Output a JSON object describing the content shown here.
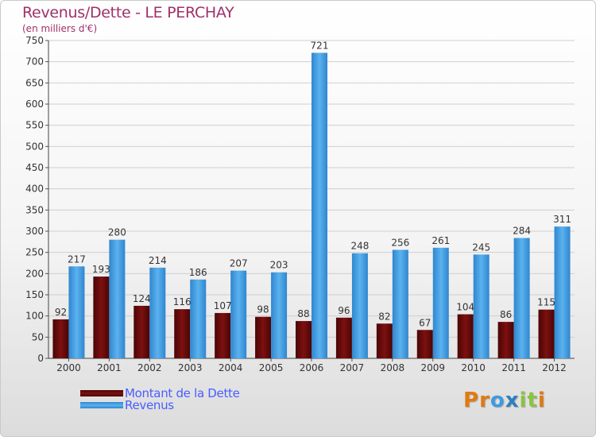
{
  "title": "Revenus/Dette - LE PERCHAY",
  "subtitle": "(en milliers d'€)",
  "colors": {
    "title": "#a0306a",
    "dette": "#6e0a0a",
    "revenus": "#3d9be0",
    "legend_text": "#4a5cff"
  },
  "legend": [
    {
      "label": "Montant de la Dette",
      "color": "#6e0a0a"
    },
    {
      "label": "Revenus",
      "color": "#3d9be0"
    }
  ],
  "logo": {
    "text": "Proxiti",
    "letters": [
      "P",
      "r",
      "o",
      "x",
      "i",
      "t",
      "i"
    ],
    "colors": [
      "#e07a10",
      "#e07a10",
      "#3d9be0",
      "#2e7fbf",
      "#8ac43f",
      "#8ac43f",
      "#e07a10"
    ]
  },
  "chart_data": {
    "type": "bar",
    "title": "Revenus/Dette - LE PERCHAY",
    "ylabel": "(en milliers d'€)",
    "xlabel": "",
    "categories": [
      "2000",
      "2001",
      "2002",
      "2003",
      "2004",
      "2005",
      "2006",
      "2007",
      "2008",
      "2009",
      "2010",
      "2011",
      "2012"
    ],
    "series": [
      {
        "name": "Montant de la Dette",
        "values": [
          92,
          193,
          124,
          116,
          107,
          98,
          88,
          96,
          82,
          67,
          104,
          86,
          115
        ]
      },
      {
        "name": "Revenus",
        "values": [
          217,
          280,
          214,
          186,
          207,
          203,
          721,
          248,
          256,
          261,
          245,
          284,
          311
        ]
      }
    ],
    "ylim": [
      0,
      750
    ],
    "yticks": [
      0,
      50,
      100,
      150,
      200,
      250,
      300,
      350,
      400,
      450,
      500,
      550,
      600,
      650,
      700,
      750
    ],
    "grid": true,
    "legend_position": "bottom-left"
  }
}
